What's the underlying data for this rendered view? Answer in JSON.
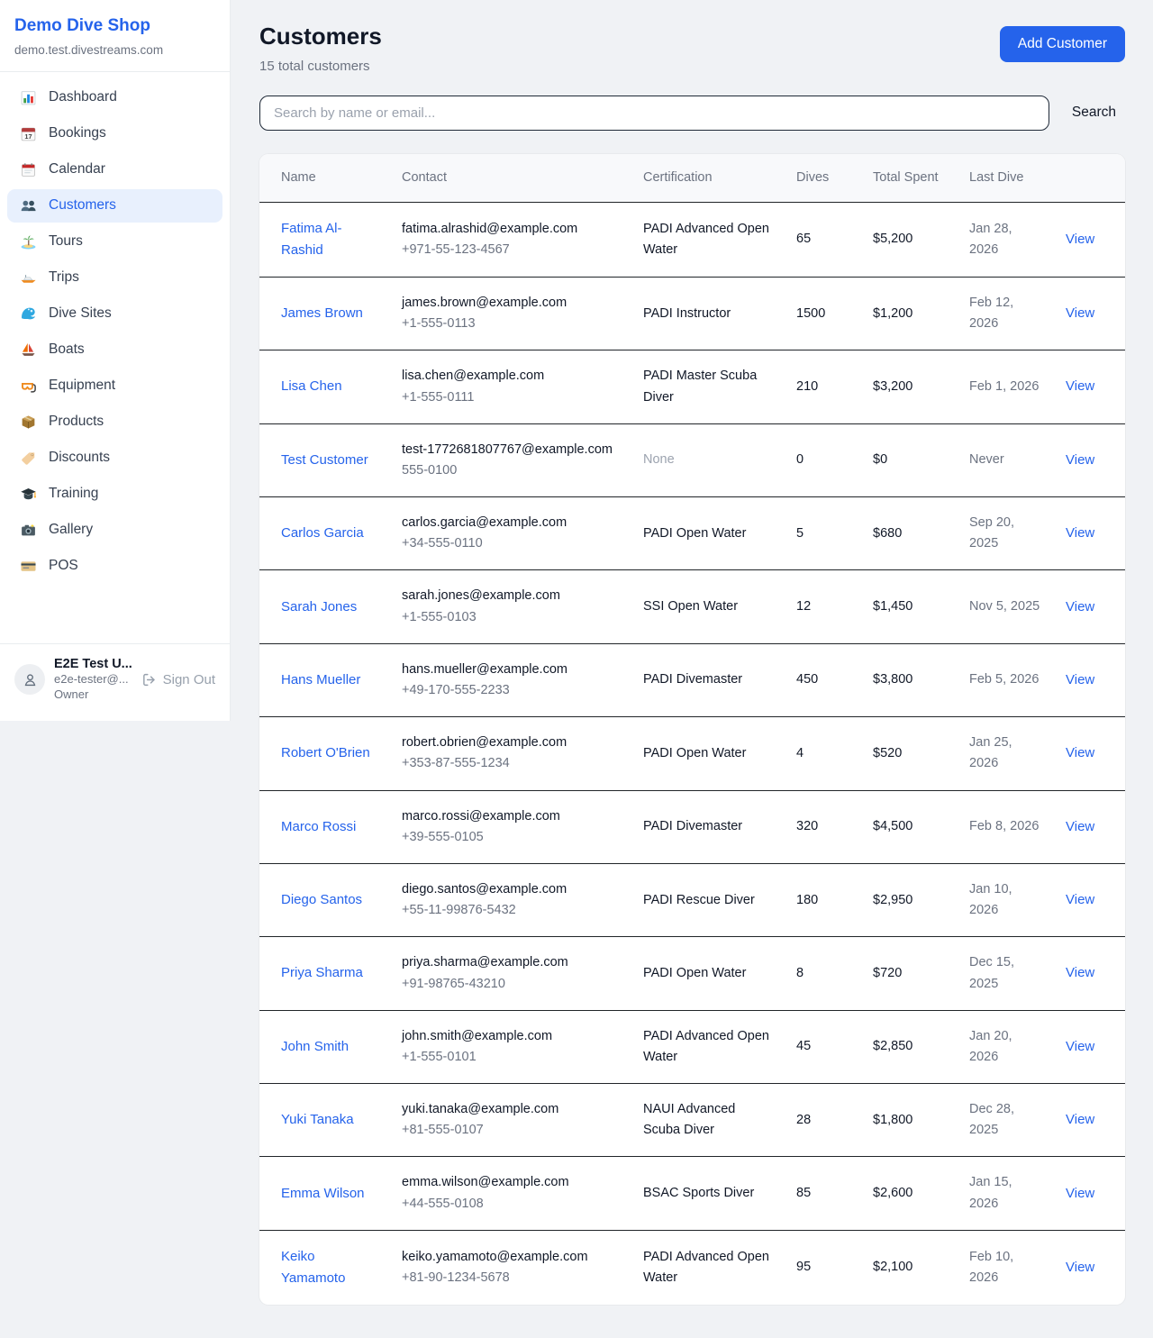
{
  "sidebar": {
    "title": "Demo Dive Shop",
    "subtitle": "demo.test.divestreams.com",
    "items": [
      {
        "id": "dashboard",
        "label": "Dashboard",
        "icon": "bar-chart-icon",
        "active": false
      },
      {
        "id": "bookings",
        "label": "Bookings",
        "icon": "calendar-date-icon",
        "active": false
      },
      {
        "id": "calendar",
        "label": "Calendar",
        "icon": "calendar-pad-icon",
        "active": false
      },
      {
        "id": "customers",
        "label": "Customers",
        "icon": "people-icon",
        "active": true
      },
      {
        "id": "tours",
        "label": "Tours",
        "icon": "island-icon",
        "active": false
      },
      {
        "id": "trips",
        "label": "Trips",
        "icon": "speedboat-icon",
        "active": false
      },
      {
        "id": "dive-sites",
        "label": "Dive Sites",
        "icon": "wave-icon",
        "active": false
      },
      {
        "id": "boats",
        "label": "Boats",
        "icon": "sailboat-icon",
        "active": false
      },
      {
        "id": "equipment",
        "label": "Equipment",
        "icon": "dive-mask-icon",
        "active": false
      },
      {
        "id": "products",
        "label": "Products",
        "icon": "package-icon",
        "active": false
      },
      {
        "id": "discounts",
        "label": "Discounts",
        "icon": "tag-icon",
        "active": false
      },
      {
        "id": "training",
        "label": "Training",
        "icon": "graduation-cap-icon",
        "active": false
      },
      {
        "id": "gallery",
        "label": "Gallery",
        "icon": "camera-icon",
        "active": false
      },
      {
        "id": "pos",
        "label": "POS",
        "icon": "credit-card-icon",
        "active": false
      }
    ],
    "user": {
      "name": "E2E Test U...",
      "email": "e2e-tester@...",
      "role": "Owner",
      "signout_label": "Sign Out"
    }
  },
  "header": {
    "title": "Customers",
    "subtitle": "15 total customers",
    "add_button": "Add Customer"
  },
  "search": {
    "placeholder": "Search by name or email...",
    "button": "Search"
  },
  "table": {
    "columns": [
      "Name",
      "Contact",
      "Certification",
      "Dives",
      "Total Spent",
      "Last Dive",
      ""
    ],
    "rows": [
      {
        "name": "Fatima Al-Rashid",
        "email": "fatima.alrashid@example.com",
        "phone": "+971-55-123-4567",
        "certification": "PADI Advanced Open Water",
        "dives": "65",
        "total_spent": "$5,200",
        "last_dive": "Jan 28, 2026",
        "action": "View"
      },
      {
        "name": "James Brown",
        "email": "james.brown@example.com",
        "phone": "+1-555-0113",
        "certification": "PADI Instructor",
        "dives": "1500",
        "total_spent": "$1,200",
        "last_dive": "Feb 12, 2026",
        "action": "View"
      },
      {
        "name": "Lisa Chen",
        "email": "lisa.chen@example.com",
        "phone": "+1-555-0111",
        "certification": "PADI Master Scuba Diver",
        "dives": "210",
        "total_spent": "$3,200",
        "last_dive": "Feb 1, 2026",
        "action": "View"
      },
      {
        "name": "Test Customer",
        "email": "test-1772681807767@example.com",
        "phone": "555-0100",
        "certification": "None",
        "dives": "0",
        "total_spent": "$0",
        "last_dive": "Never",
        "action": "View"
      },
      {
        "name": "Carlos Garcia",
        "email": "carlos.garcia@example.com",
        "phone": "+34-555-0110",
        "certification": "PADI Open Water",
        "dives": "5",
        "total_spent": "$680",
        "last_dive": "Sep 20, 2025",
        "action": "View"
      },
      {
        "name": "Sarah Jones",
        "email": "sarah.jones@example.com",
        "phone": "+1-555-0103",
        "certification": "SSI Open Water",
        "dives": "12",
        "total_spent": "$1,450",
        "last_dive": "Nov 5, 2025",
        "action": "View"
      },
      {
        "name": "Hans Mueller",
        "email": "hans.mueller@example.com",
        "phone": "+49-170-555-2233",
        "certification": "PADI Divemaster",
        "dives": "450",
        "total_spent": "$3,800",
        "last_dive": "Feb 5, 2026",
        "action": "View"
      },
      {
        "name": "Robert O'Brien",
        "email": "robert.obrien@example.com",
        "phone": "+353-87-555-1234",
        "certification": "PADI Open Water",
        "dives": "4",
        "total_spent": "$520",
        "last_dive": "Jan 25, 2026",
        "action": "View"
      },
      {
        "name": "Marco Rossi",
        "email": "marco.rossi@example.com",
        "phone": "+39-555-0105",
        "certification": "PADI Divemaster",
        "dives": "320",
        "total_spent": "$4,500",
        "last_dive": "Feb 8, 2026",
        "action": "View"
      },
      {
        "name": "Diego Santos",
        "email": "diego.santos@example.com",
        "phone": "+55-11-99876-5432",
        "certification": "PADI Rescue Diver",
        "dives": "180",
        "total_spent": "$2,950",
        "last_dive": "Jan 10, 2026",
        "action": "View"
      },
      {
        "name": "Priya Sharma",
        "email": "priya.sharma@example.com",
        "phone": "+91-98765-43210",
        "certification": "PADI Open Water",
        "dives": "8",
        "total_spent": "$720",
        "last_dive": "Dec 15, 2025",
        "action": "View"
      },
      {
        "name": "John Smith",
        "email": "john.smith@example.com",
        "phone": "+1-555-0101",
        "certification": "PADI Advanced Open Water",
        "dives": "45",
        "total_spent": "$2,850",
        "last_dive": "Jan 20, 2026",
        "action": "View"
      },
      {
        "name": "Yuki Tanaka",
        "email": "yuki.tanaka@example.com",
        "phone": "+81-555-0107",
        "certification": "NAUI Advanced Scuba Diver",
        "dives": "28",
        "total_spent": "$1,800",
        "last_dive": "Dec 28, 2025",
        "action": "View"
      },
      {
        "name": "Emma Wilson",
        "email": "emma.wilson@example.com",
        "phone": "+44-555-0108",
        "certification": "BSAC Sports Diver",
        "dives": "85",
        "total_spent": "$2,600",
        "last_dive": "Jan 15, 2026",
        "action": "View"
      },
      {
        "name": "Keiko Yamamoto",
        "email": "keiko.yamamoto@example.com",
        "phone": "+81-90-1234-5678",
        "certification": "PADI Advanced Open Water",
        "dives": "95",
        "total_spent": "$2,100",
        "last_dive": "Feb 10, 2026",
        "action": "View"
      }
    ]
  },
  "colors": {
    "accent_blue": "#2563eb",
    "active_item_bg": "#e8f0fd",
    "page_bg": "#f0f2f5",
    "table_header_bg": "#f8f9fb",
    "row_border": "#212529",
    "muted_text": "#6b7280",
    "light_muted_text": "#9ca3af"
  }
}
